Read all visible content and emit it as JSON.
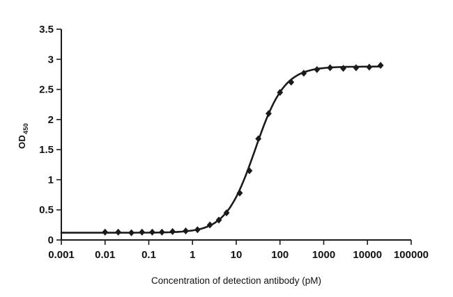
{
  "chart_data": {
    "type": "scatter",
    "title": "",
    "xlabel": "Concentration of detection antibody (pM)",
    "ylabel_main": "OD",
    "ylabel_sub": "450",
    "xscale": "log",
    "xlim": [
      0.001,
      100000
    ],
    "ylim": [
      0,
      3.5
    ],
    "xticks": [
      0.001,
      0.01,
      0.1,
      1,
      10,
      100,
      1000,
      10000,
      100000
    ],
    "xtick_labels": [
      "0.001",
      "0.01",
      "0.1",
      "1",
      "10",
      "100",
      "1000",
      "10000",
      "100000"
    ],
    "yticks": [
      0,
      0.5,
      1,
      1.5,
      2,
      2.5,
      3,
      3.5
    ],
    "ytick_labels": [
      "0",
      "0.5",
      "1",
      "1.5",
      "2",
      "2.5",
      "3",
      "3.5"
    ],
    "grid": false,
    "legend": "none",
    "marker": "diamond",
    "line_color": "#1a1a1a",
    "x": [
      0.01,
      0.02,
      0.04,
      0.07,
      0.12,
      0.2,
      0.35,
      0.7,
      1.3,
      2.5,
      4,
      6,
      12,
      20,
      32,
      55,
      100,
      180,
      350,
      700,
      1400,
      2800,
      5500,
      11000,
      20000
    ],
    "y": [
      0.13,
      0.13,
      0.12,
      0.13,
      0.13,
      0.13,
      0.14,
      0.15,
      0.17,
      0.25,
      0.33,
      0.45,
      0.78,
      1.15,
      1.68,
      2.1,
      2.45,
      2.62,
      2.77,
      2.83,
      2.86,
      2.85,
      2.86,
      2.87,
      2.9
    ],
    "fit": {
      "bottom": 0.12,
      "top": 2.88,
      "ec50": 27,
      "hill": 1.3,
      "x_start": 0.001,
      "x_end": 20000
    }
  }
}
